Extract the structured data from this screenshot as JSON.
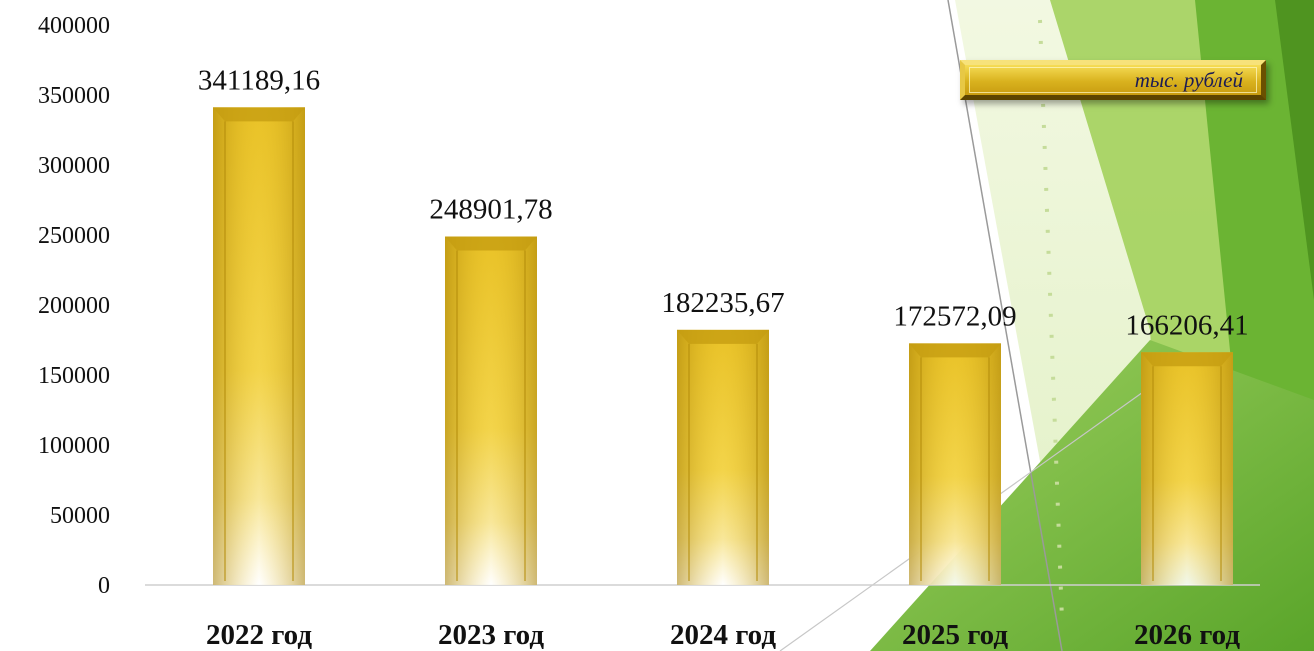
{
  "chart_data": {
    "type": "bar",
    "categories": [
      "2022 год",
      "2023 год",
      "2024 год",
      "2025 год",
      "2026 год"
    ],
    "values": [
      341189.16,
      248901.78,
      182235.67,
      172572.09,
      166206.41
    ],
    "value_labels": [
      "341189,16",
      "248901,78",
      "182235,67",
      "172572,09",
      "166206,41"
    ],
    "unit_label": "тыс. рублей",
    "ylim": [
      0,
      400000
    ],
    "yticks": [
      "0",
      "50000",
      "100000",
      "150000",
      "200000",
      "250000",
      "300000",
      "350000",
      "400000"
    ],
    "grid": false,
    "bar_color": "#e8c22c",
    "background_accent": "#7bbf2e"
  }
}
